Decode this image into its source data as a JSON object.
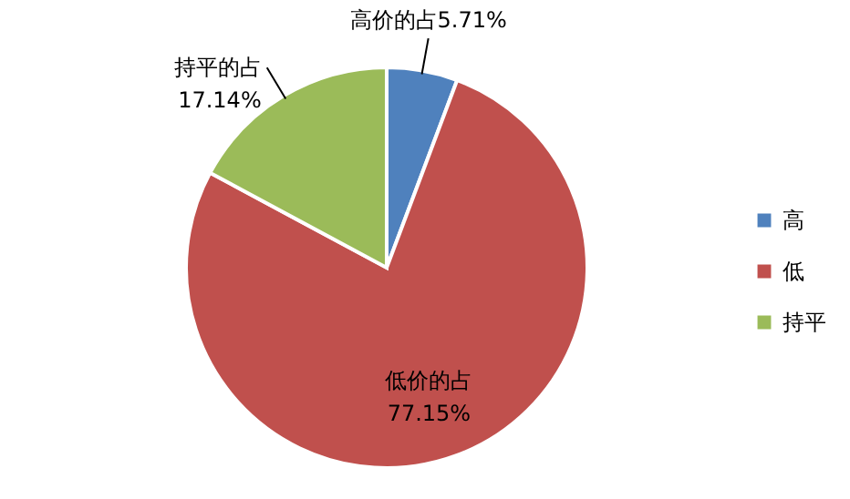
{
  "chart_data": {
    "type": "pie",
    "categories": [
      "高",
      "低",
      "持平"
    ],
    "values": [
      5.71,
      77.15,
      17.14
    ],
    "colors": [
      "#4f81bd",
      "#c0504d",
      "#9bbb59"
    ],
    "value_labels": [
      "高价的占5.71%",
      "低价的占\n77.15%",
      "持平的占\n17.14%"
    ],
    "legend": "right"
  }
}
